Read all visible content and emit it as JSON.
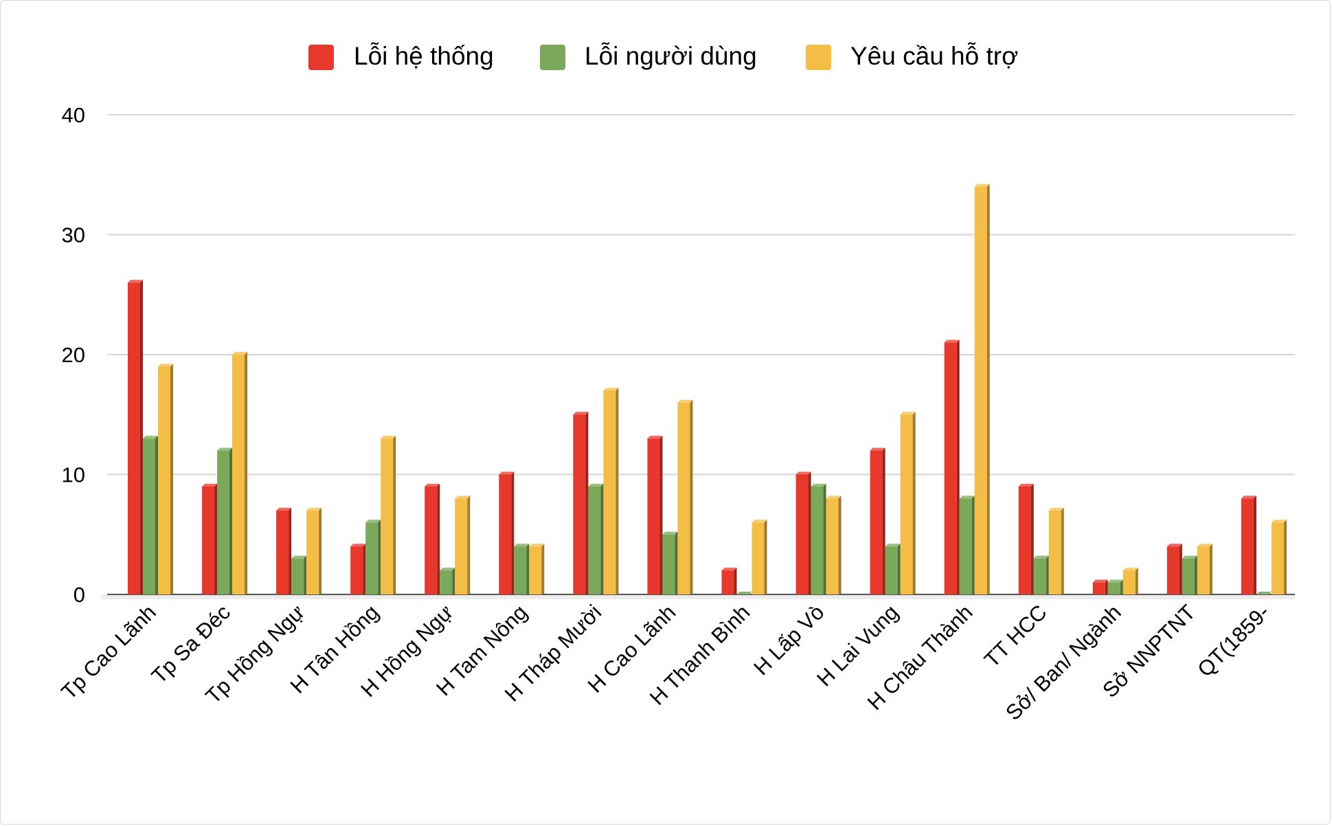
{
  "chart_data": {
    "type": "bar",
    "title": "",
    "xlabel": "",
    "ylabel": "",
    "ylim": [
      0,
      40
    ],
    "yticks": [
      0,
      10,
      20,
      30,
      40
    ],
    "grid": true,
    "legend_position": "top",
    "style": "3d-clustered-column",
    "categories": [
      "Tp Cao Lãnh",
      "Tp Sa Đéc",
      "Tp Hồng Ngự",
      "H Tân Hồng",
      "H Hồng Ngự",
      "H Tam Nông",
      "H Tháp Mười",
      "H Cao Lãnh",
      "H Thanh Bình",
      "H Lấp Vò",
      "H Lai Vung",
      "H Châu Thành",
      "TT HCC",
      "Sở/ Ban/ Ngành",
      "Sở NNPTNT",
      "QT(1859-"
    ],
    "series": [
      {
        "name": "Lỗi hệ thống",
        "color": "#e8382b",
        "values": [
          26,
          9,
          7,
          4,
          9,
          10,
          15,
          13,
          2,
          10,
          12,
          21,
          9,
          1,
          4,
          8
        ]
      },
      {
        "name": "Lỗi người dùng",
        "color": "#7aa95a",
        "values": [
          13,
          12,
          3,
          6,
          2,
          4,
          9,
          5,
          0,
          9,
          4,
          8,
          3,
          1,
          3,
          0
        ]
      },
      {
        "name": "Yêu cầu hỗ trợ",
        "color": "#f4bd45",
        "values": [
          19,
          20,
          7,
          13,
          8,
          4,
          17,
          16,
          6,
          8,
          15,
          34,
          7,
          2,
          4,
          6
        ]
      }
    ]
  }
}
